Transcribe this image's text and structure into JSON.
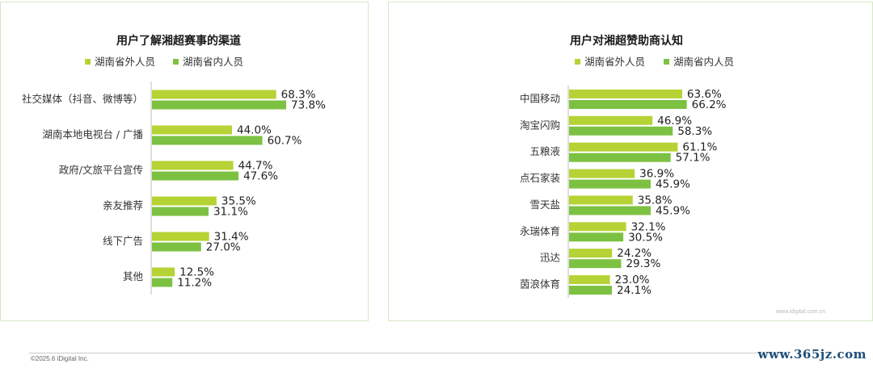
{
  "chart_data": [
    {
      "type": "bar",
      "orientation": "horizontal",
      "title": "用户了解湘超赛事的渠道",
      "categories": [
        "社交媒体（抖音、微博等）",
        "湖南本地电视台 / 广播",
        "政府/文旅平台宣传",
        "亲友推荐",
        "线下广告",
        "其他"
      ],
      "series": [
        {
          "name": "湖南省外人员",
          "color": "#b5d334",
          "values": [
            68.3,
            44.0,
            44.7,
            35.5,
            31.4,
            12.5
          ]
        },
        {
          "name": "湖南省内人员",
          "color": "#7dc142",
          "values": [
            73.8,
            60.7,
            47.6,
            31.1,
            27.0,
            11.2
          ]
        }
      ],
      "value_suffix": "%",
      "legend_position": "top",
      "grid": false
    },
    {
      "type": "bar",
      "orientation": "horizontal",
      "title": "用户对湘超赞助商认知",
      "categories": [
        "中国移动",
        "淘宝闪购",
        "五粮液",
        "点石家装",
        "雪天盐",
        "永瑞体育",
        "迅达",
        "茵浪体育"
      ],
      "series": [
        {
          "name": "湖南省外人员",
          "color": "#b5d334",
          "values": [
            63.6,
            46.9,
            61.1,
            36.9,
            35.8,
            32.1,
            24.2,
            23.0
          ]
        },
        {
          "name": "湖南省内人员",
          "color": "#7dc142",
          "values": [
            66.2,
            58.3,
            57.1,
            45.9,
            45.9,
            30.5,
            29.3,
            24.1
          ]
        }
      ],
      "value_suffix": "%",
      "legend_position": "top",
      "grid": false
    }
  ],
  "footer": {
    "copyright": "©2025.6 iDigital Inc.",
    "watermark": "www.365jz.com",
    "watermark_small": "www.idigital.com.cn"
  }
}
